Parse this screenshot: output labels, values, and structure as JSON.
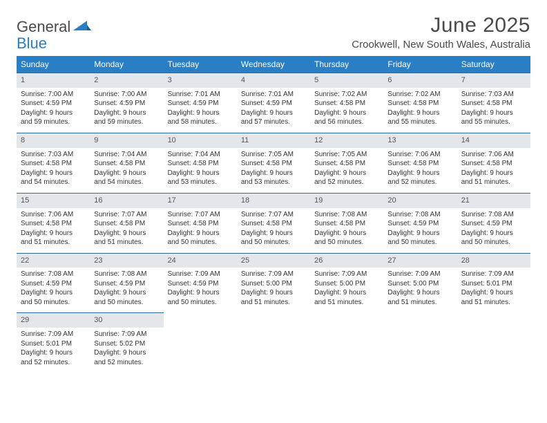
{
  "brand": {
    "part1": "General",
    "part2": "Blue"
  },
  "title": "June 2025",
  "location": "Crookwell, New South Wales, Australia",
  "header_bg": "#2a7ec4",
  "daynum_bg": "#e4e7e9",
  "border_color": "#2a6aa0",
  "weekdays": [
    "Sunday",
    "Monday",
    "Tuesday",
    "Wednesday",
    "Thursday",
    "Friday",
    "Saturday"
  ],
  "weeks": [
    [
      {
        "n": "1",
        "sr": "7:00 AM",
        "ss": "4:59 PM",
        "dl": "9 hours and 59 minutes."
      },
      {
        "n": "2",
        "sr": "7:00 AM",
        "ss": "4:59 PM",
        "dl": "9 hours and 59 minutes."
      },
      {
        "n": "3",
        "sr": "7:01 AM",
        "ss": "4:59 PM",
        "dl": "9 hours and 58 minutes."
      },
      {
        "n": "4",
        "sr": "7:01 AM",
        "ss": "4:59 PM",
        "dl": "9 hours and 57 minutes."
      },
      {
        "n": "5",
        "sr": "7:02 AM",
        "ss": "4:58 PM",
        "dl": "9 hours and 56 minutes."
      },
      {
        "n": "6",
        "sr": "7:02 AM",
        "ss": "4:58 PM",
        "dl": "9 hours and 55 minutes."
      },
      {
        "n": "7",
        "sr": "7:03 AM",
        "ss": "4:58 PM",
        "dl": "9 hours and 55 minutes."
      }
    ],
    [
      {
        "n": "8",
        "sr": "7:03 AM",
        "ss": "4:58 PM",
        "dl": "9 hours and 54 minutes."
      },
      {
        "n": "9",
        "sr": "7:04 AM",
        "ss": "4:58 PM",
        "dl": "9 hours and 54 minutes."
      },
      {
        "n": "10",
        "sr": "7:04 AM",
        "ss": "4:58 PM",
        "dl": "9 hours and 53 minutes."
      },
      {
        "n": "11",
        "sr": "7:05 AM",
        "ss": "4:58 PM",
        "dl": "9 hours and 53 minutes."
      },
      {
        "n": "12",
        "sr": "7:05 AM",
        "ss": "4:58 PM",
        "dl": "9 hours and 52 minutes."
      },
      {
        "n": "13",
        "sr": "7:06 AM",
        "ss": "4:58 PM",
        "dl": "9 hours and 52 minutes."
      },
      {
        "n": "14",
        "sr": "7:06 AM",
        "ss": "4:58 PM",
        "dl": "9 hours and 51 minutes."
      }
    ],
    [
      {
        "n": "15",
        "sr": "7:06 AM",
        "ss": "4:58 PM",
        "dl": "9 hours and 51 minutes."
      },
      {
        "n": "16",
        "sr": "7:07 AM",
        "ss": "4:58 PM",
        "dl": "9 hours and 51 minutes."
      },
      {
        "n": "17",
        "sr": "7:07 AM",
        "ss": "4:58 PM",
        "dl": "9 hours and 50 minutes."
      },
      {
        "n": "18",
        "sr": "7:07 AM",
        "ss": "4:58 PM",
        "dl": "9 hours and 50 minutes."
      },
      {
        "n": "19",
        "sr": "7:08 AM",
        "ss": "4:58 PM",
        "dl": "9 hours and 50 minutes."
      },
      {
        "n": "20",
        "sr": "7:08 AM",
        "ss": "4:59 PM",
        "dl": "9 hours and 50 minutes."
      },
      {
        "n": "21",
        "sr": "7:08 AM",
        "ss": "4:59 PM",
        "dl": "9 hours and 50 minutes."
      }
    ],
    [
      {
        "n": "22",
        "sr": "7:08 AM",
        "ss": "4:59 PM",
        "dl": "9 hours and 50 minutes."
      },
      {
        "n": "23",
        "sr": "7:08 AM",
        "ss": "4:59 PM",
        "dl": "9 hours and 50 minutes."
      },
      {
        "n": "24",
        "sr": "7:09 AM",
        "ss": "4:59 PM",
        "dl": "9 hours and 50 minutes."
      },
      {
        "n": "25",
        "sr": "7:09 AM",
        "ss": "5:00 PM",
        "dl": "9 hours and 51 minutes."
      },
      {
        "n": "26",
        "sr": "7:09 AM",
        "ss": "5:00 PM",
        "dl": "9 hours and 51 minutes."
      },
      {
        "n": "27",
        "sr": "7:09 AM",
        "ss": "5:00 PM",
        "dl": "9 hours and 51 minutes."
      },
      {
        "n": "28",
        "sr": "7:09 AM",
        "ss": "5:01 PM",
        "dl": "9 hours and 51 minutes."
      }
    ],
    [
      {
        "n": "29",
        "sr": "7:09 AM",
        "ss": "5:01 PM",
        "dl": "9 hours and 52 minutes."
      },
      {
        "n": "30",
        "sr": "7:09 AM",
        "ss": "5:02 PM",
        "dl": "9 hours and 52 minutes."
      },
      null,
      null,
      null,
      null,
      null
    ]
  ],
  "labels": {
    "sunrise": "Sunrise: ",
    "sunset": "Sunset: ",
    "daylight": "Daylight: "
  }
}
